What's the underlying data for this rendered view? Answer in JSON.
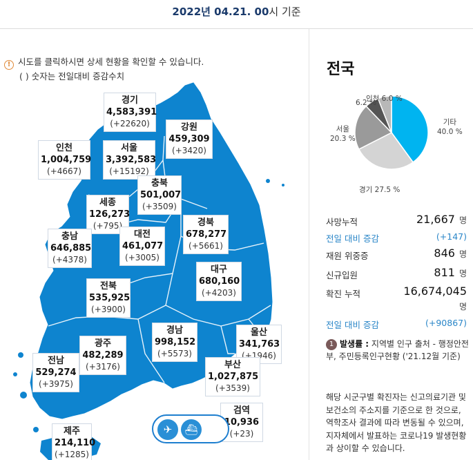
{
  "header": {
    "date": "2022년 04.21. 00",
    "suffix": "시 기준"
  },
  "info": {
    "line1": "시도를 클릭하시면 상세 현황을 확인할 수 있습니다.",
    "line2": "( ) 숫자는 전일대비 증감수치",
    "icon": "info-circle-icon"
  },
  "regions": [
    {
      "name": "경기",
      "value": "4,583,391",
      "diff": "(+22620)"
    },
    {
      "name": "강원",
      "value": "459,309",
      "diff": "(+3420)"
    },
    {
      "name": "인천",
      "value": "1,004,759",
      "diff": "(+4667)"
    },
    {
      "name": "서울",
      "value": "3,392,583",
      "diff": "(+15192)"
    },
    {
      "name": "충북",
      "value": "501,007",
      "diff": "(+3509)"
    },
    {
      "name": "세종",
      "value": "126,273",
      "diff": "(+795)"
    },
    {
      "name": "경북",
      "value": "678,277",
      "diff": "(+5661)"
    },
    {
      "name": "충남",
      "value": "646,885",
      "diff": "(+4378)"
    },
    {
      "name": "대전",
      "value": "461,077",
      "diff": "(+3005)"
    },
    {
      "name": "대구",
      "value": "680,160",
      "diff": "(+4203)"
    },
    {
      "name": "전북",
      "value": "535,925",
      "diff": "(+3900)"
    },
    {
      "name": "경남",
      "value": "998,152",
      "diff": "(+5573)"
    },
    {
      "name": "울산",
      "value": "341,763",
      "diff": "(+1946)"
    },
    {
      "name": "광주",
      "value": "482,289",
      "diff": "(+3176)"
    },
    {
      "name": "전남",
      "value": "529,274",
      "diff": "(+3975)"
    },
    {
      "name": "부산",
      "value": "1,027,875",
      "diff": "(+3539)"
    },
    {
      "name": "제주",
      "value": "214,110",
      "diff": "(+1285)"
    },
    {
      "name": "검역",
      "value": "10,936",
      "diff": "(+23)"
    }
  ],
  "transport": {
    "icons": [
      "airplane-icon",
      "ship-icon"
    ]
  },
  "national": {
    "title": "전국",
    "pie": [
      {
        "label": "기타",
        "pct": "40.0 %",
        "value": 40.0,
        "color": "#00b4f0"
      },
      {
        "label": "경기",
        "pct": "27.5 %",
        "value": 27.5,
        "color": "#d4d4d4"
      },
      {
        "label": "서울",
        "pct": "20.3 %",
        "value": 20.3,
        "color": "#9a9a9a"
      },
      {
        "label": "",
        "pct": "6.2 %",
        "value": 6.2,
        "color": "#555555"
      },
      {
        "label": "인천",
        "pct": "6.0 %",
        "value": 6.0,
        "color": "#b8b8b8"
      }
    ],
    "stats": {
      "deaths": {
        "label": "사망누적",
        "value": "21,667",
        "unit": "명"
      },
      "deaths_diff": {
        "label": "전일 대비 증감",
        "value": "(+147)"
      },
      "critical": {
        "label": "재원 위중증",
        "value": "846",
        "unit": "명"
      },
      "admitted": {
        "label": "신규입원",
        "value": "811",
        "unit": "명"
      },
      "confirmed": {
        "label": "확진 누적",
        "value": "16,674,045",
        "unit": "명"
      },
      "confirmed_diff": {
        "label": "전일 대비 증감",
        "value": "(+90867)"
      }
    },
    "note": {
      "num": "1",
      "bold": "발생률 :",
      "text": " 지역별 인구 출처 - 행정안전부, 주민등록인구현황 ('21.12월 기준)"
    },
    "note2": "해당 시군구별 확진자는 신고의료기관 및 보건소의 주소지를 기준으로 한 것으로, 역학조사 결과에 따라 변동될 수 있으며, 지자체에서 발표하는 코로나19 발생현황과 상이할 수 있습니다."
  }
}
